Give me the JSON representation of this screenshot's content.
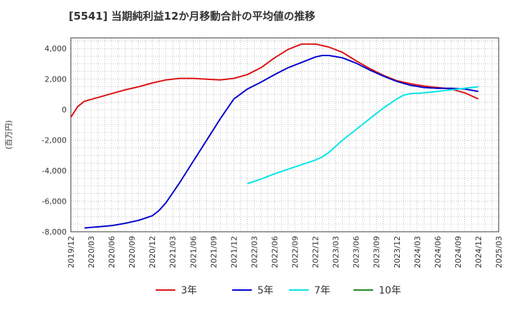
{
  "title": "[5541]  当期純利益12か月移動合計の平均値の推移",
  "chart_data": {
    "type": "line",
    "ylabel": "(百万円)",
    "ylim": [
      -8000,
      4700
    ],
    "xlim": [
      "2019-12",
      "2025-03"
    ],
    "yticks": [
      "4,000",
      "2,000",
      "0",
      "-2,000",
      "-4,000",
      "-6,000",
      "-8,000"
    ],
    "ytick_values": [
      4000,
      2000,
      0,
      -2000,
      -4000,
      -6000,
      -8000
    ],
    "xticks": [
      "2019/12",
      "2020/03",
      "2020/06",
      "2020/09",
      "2020/12",
      "2021/03",
      "2021/06",
      "2021/09",
      "2021/12",
      "2022/03",
      "2022/06",
      "2022/09",
      "2022/12",
      "2023/03",
      "2023/06",
      "2023/09",
      "2023/12",
      "2024/03",
      "2024/06",
      "2024/09",
      "2024/12",
      "2025/03"
    ],
    "grid": true,
    "legend_position": "bottom",
    "series": [
      {
        "name": "3年",
        "color": "#dd1111",
        "points": [
          [
            "2019-12",
            -500
          ],
          [
            "2020-01",
            200
          ],
          [
            "2020-02",
            550
          ],
          [
            "2020-04",
            800
          ],
          [
            "2020-06",
            1050
          ],
          [
            "2020-08",
            1300
          ],
          [
            "2020-10",
            1500
          ],
          [
            "2020-12",
            1750
          ],
          [
            "2021-02",
            1950
          ],
          [
            "2021-04",
            2050
          ],
          [
            "2021-06",
            2050
          ],
          [
            "2021-08",
            2000
          ],
          [
            "2021-10",
            1950
          ],
          [
            "2021-12",
            2050
          ],
          [
            "2022-02",
            2300
          ],
          [
            "2022-04",
            2750
          ],
          [
            "2022-06",
            3400
          ],
          [
            "2022-08",
            3950
          ],
          [
            "2022-10",
            4300
          ],
          [
            "2022-12",
            4300
          ],
          [
            "2023-02",
            4100
          ],
          [
            "2023-04",
            3750
          ],
          [
            "2023-06",
            3200
          ],
          [
            "2023-08",
            2700
          ],
          [
            "2023-10",
            2250
          ],
          [
            "2023-12",
            1900
          ],
          [
            "2024-02",
            1700
          ],
          [
            "2024-04",
            1550
          ],
          [
            "2024-06",
            1450
          ],
          [
            "2024-08",
            1350
          ],
          [
            "2024-10",
            1100
          ],
          [
            "2024-12",
            700
          ]
        ]
      },
      {
        "name": "5年",
        "color": "#0000cc",
        "points": [
          [
            "2020-02",
            -7750
          ],
          [
            "2020-04",
            -7680
          ],
          [
            "2020-06",
            -7600
          ],
          [
            "2020-08",
            -7450
          ],
          [
            "2020-10",
            -7250
          ],
          [
            "2020-12",
            -6950
          ],
          [
            "2021-01",
            -6600
          ],
          [
            "2021-02",
            -6100
          ],
          [
            "2021-04",
            -4800
          ],
          [
            "2021-06",
            -3400
          ],
          [
            "2021-08",
            -2000
          ],
          [
            "2021-10",
            -600
          ],
          [
            "2021-12",
            700
          ],
          [
            "2022-02",
            1350
          ],
          [
            "2022-04",
            1800
          ],
          [
            "2022-06",
            2300
          ],
          [
            "2022-08",
            2750
          ],
          [
            "2022-10",
            3100
          ],
          [
            "2022-12",
            3450
          ],
          [
            "2023-01",
            3550
          ],
          [
            "2023-02",
            3550
          ],
          [
            "2023-04",
            3400
          ],
          [
            "2023-06",
            3050
          ],
          [
            "2023-08",
            2600
          ],
          [
            "2023-10",
            2200
          ],
          [
            "2023-12",
            1850
          ],
          [
            "2024-02",
            1600
          ],
          [
            "2024-04",
            1450
          ],
          [
            "2024-06",
            1400
          ],
          [
            "2024-08",
            1400
          ],
          [
            "2024-10",
            1350
          ],
          [
            "2024-12",
            1200
          ]
        ]
      },
      {
        "name": "7年",
        "color": "#00e5e5",
        "points": [
          [
            "2022-02",
            -4850
          ],
          [
            "2022-04",
            -4550
          ],
          [
            "2022-06",
            -4200
          ],
          [
            "2022-08",
            -3900
          ],
          [
            "2022-10",
            -3600
          ],
          [
            "2022-12",
            -3300
          ],
          [
            "2023-01",
            -3100
          ],
          [
            "2023-02",
            -2800
          ],
          [
            "2023-04",
            -2000
          ],
          [
            "2023-06",
            -1300
          ],
          [
            "2023-08",
            -600
          ],
          [
            "2023-10",
            100
          ],
          [
            "2023-12",
            700
          ],
          [
            "2024-01",
            950
          ],
          [
            "2024-02",
            1050
          ],
          [
            "2024-04",
            1100
          ],
          [
            "2024-06",
            1200
          ],
          [
            "2024-08",
            1300
          ],
          [
            "2024-10",
            1400
          ],
          [
            "2024-12",
            1500
          ]
        ]
      },
      {
        "name": "10年",
        "color": "#228822",
        "points": []
      }
    ]
  }
}
